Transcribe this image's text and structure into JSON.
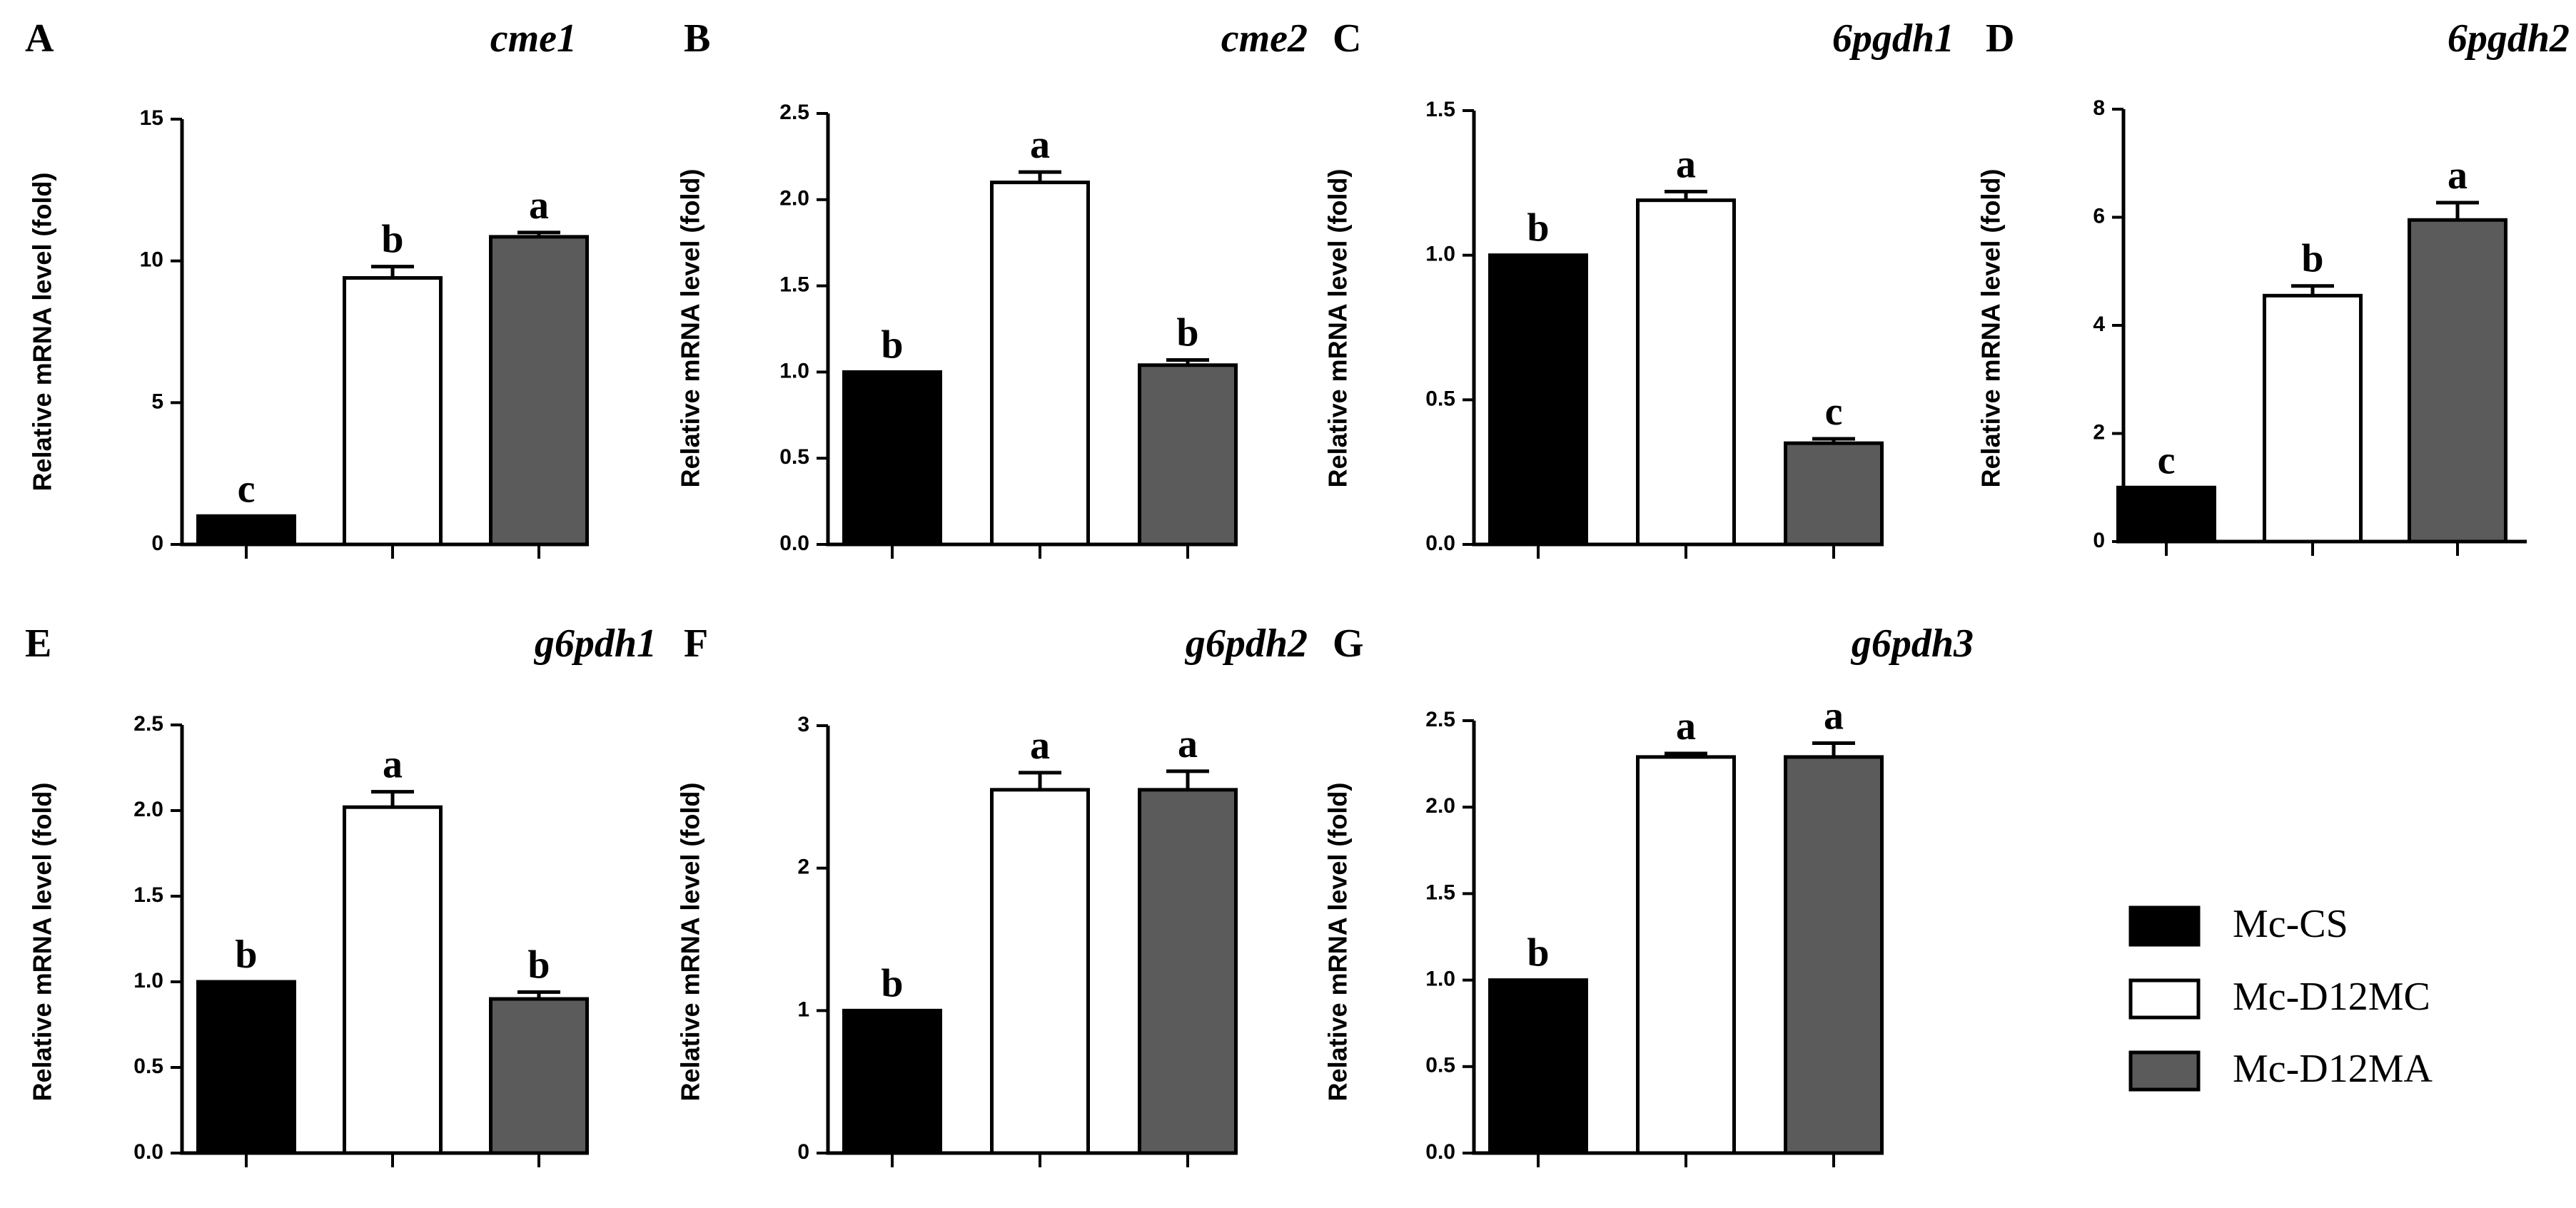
{
  "figure": {
    "groups": [
      "Mc-CS",
      "Mc-D12MC",
      "Mc-D12MA"
    ],
    "group_colors": [
      "#000000",
      "#ffffff",
      "#5b5b5b"
    ],
    "axis_color": "#000000"
  },
  "legend": {
    "items": [
      {
        "label": "Mc-CS",
        "color": "#000000"
      },
      {
        "label": "Mc-D12MC",
        "color": "#ffffff"
      },
      {
        "label": "Mc-D12MA",
        "color": "#5b5b5b"
      }
    ]
  },
  "chart_data": [
    {
      "panel": "A",
      "type": "bar",
      "title": "cme1",
      "ylabel": "Relative mRNA level (fold)",
      "xlabel": "",
      "categories": [
        "Mc-CS",
        "Mc-D12MC",
        "Mc-D12MA"
      ],
      "values": [
        1.0,
        9.4,
        10.85
      ],
      "errors": [
        0.0,
        0.4,
        0.15
      ],
      "significance": [
        "c",
        "b",
        "a"
      ],
      "ylim": [
        0,
        15
      ],
      "yticks": [
        "0",
        "5",
        "10",
        "15"
      ],
      "ytick_values": [
        0,
        5,
        10,
        15
      ]
    },
    {
      "panel": "B",
      "type": "bar",
      "title": "cme2",
      "ylabel": "Relative mRNA level (fold)",
      "xlabel": "",
      "categories": [
        "Mc-CS",
        "Mc-D12MC",
        "Mc-D12MA"
      ],
      "values": [
        1.0,
        2.1,
        1.04
      ],
      "errors": [
        0.0,
        0.06,
        0.03
      ],
      "significance": [
        "b",
        "a",
        "b"
      ],
      "ylim": [
        0,
        2.5
      ],
      "yticks": [
        "0.0",
        "0.5",
        "1.0",
        "1.5",
        "2.0",
        "2.5"
      ],
      "ytick_values": [
        0,
        0.5,
        1.0,
        1.5,
        2.0,
        2.5
      ]
    },
    {
      "panel": "C",
      "type": "bar",
      "title": "6pgdh1",
      "ylabel": "Relative mRNA level (fold)",
      "xlabel": "",
      "categories": [
        "Mc-CS",
        "Mc-D12MC",
        "Mc-D12MA"
      ],
      "values": [
        1.0,
        1.19,
        0.35
      ],
      "errors": [
        0.0,
        0.03,
        0.015
      ],
      "significance": [
        "b",
        "a",
        "c"
      ],
      "ylim": [
        0,
        1.5
      ],
      "yticks": [
        "0.0",
        "0.5",
        "1.0",
        "1.5"
      ],
      "ytick_values": [
        0,
        0.5,
        1.0,
        1.5
      ]
    },
    {
      "panel": "D",
      "type": "bar",
      "title": "6pgdh2",
      "ylabel": "Relative mRNA level (fold)",
      "xlabel": "",
      "categories": [
        "Mc-CS",
        "Mc-D12MC",
        "Mc-D12MA"
      ],
      "values": [
        1.0,
        4.55,
        5.95
      ],
      "errors": [
        0.0,
        0.18,
        0.32
      ],
      "significance": [
        "c",
        "b",
        "a"
      ],
      "ylim": [
        0,
        8
      ],
      "yticks": [
        "0",
        "2",
        "4",
        "6",
        "8"
      ],
      "ytick_values": [
        0,
        2,
        4,
        6,
        8
      ]
    },
    {
      "panel": "E",
      "type": "bar",
      "title": "g6pdh1",
      "ylabel": "Relative mRNA level (fold)",
      "xlabel": "",
      "categories": [
        "Mc-CS",
        "Mc-D12MC",
        "Mc-D12MA"
      ],
      "values": [
        1.0,
        2.02,
        0.9
      ],
      "errors": [
        0.0,
        0.09,
        0.04
      ],
      "significance": [
        "b",
        "a",
        "b"
      ],
      "ylim": [
        0,
        2.5
      ],
      "yticks": [
        "0.0",
        "0.5",
        "1.0",
        "1.5",
        "2.0",
        "2.5"
      ],
      "ytick_values": [
        0,
        0.5,
        1.0,
        1.5,
        2.0,
        2.5
      ]
    },
    {
      "panel": "F",
      "type": "bar",
      "title": "g6pdh2",
      "ylabel": "Relative mRNA level (fold)",
      "xlabel": "",
      "categories": [
        "Mc-CS",
        "Mc-D12MC",
        "Mc-D12MA"
      ],
      "values": [
        1.0,
        2.55,
        2.55
      ],
      "errors": [
        0.0,
        0.12,
        0.13
      ],
      "significance": [
        "b",
        "a",
        "a"
      ],
      "ylim": [
        0,
        3
      ],
      "yticks": [
        "0",
        "1",
        "2",
        "3"
      ],
      "ytick_values": [
        0,
        1,
        2,
        3
      ]
    },
    {
      "panel": "G",
      "type": "bar",
      "title": "g6pdh3",
      "ylabel": "Relative mRNA level (fold)",
      "xlabel": "",
      "categories": [
        "Mc-CS",
        "Mc-D12MC",
        "Mc-D12MA"
      ],
      "values": [
        1.0,
        2.29,
        2.29
      ],
      "errors": [
        0.0,
        0.02,
        0.08
      ],
      "significance": [
        "b",
        "a",
        "a"
      ],
      "ylim": [
        0,
        2.5
      ],
      "yticks": [
        "0.0",
        "0.5",
        "1.0",
        "1.5",
        "2.0",
        "2.5"
      ],
      "ytick_values": [
        0,
        0.5,
        1.0,
        1.5,
        2.0,
        2.5
      ]
    }
  ]
}
